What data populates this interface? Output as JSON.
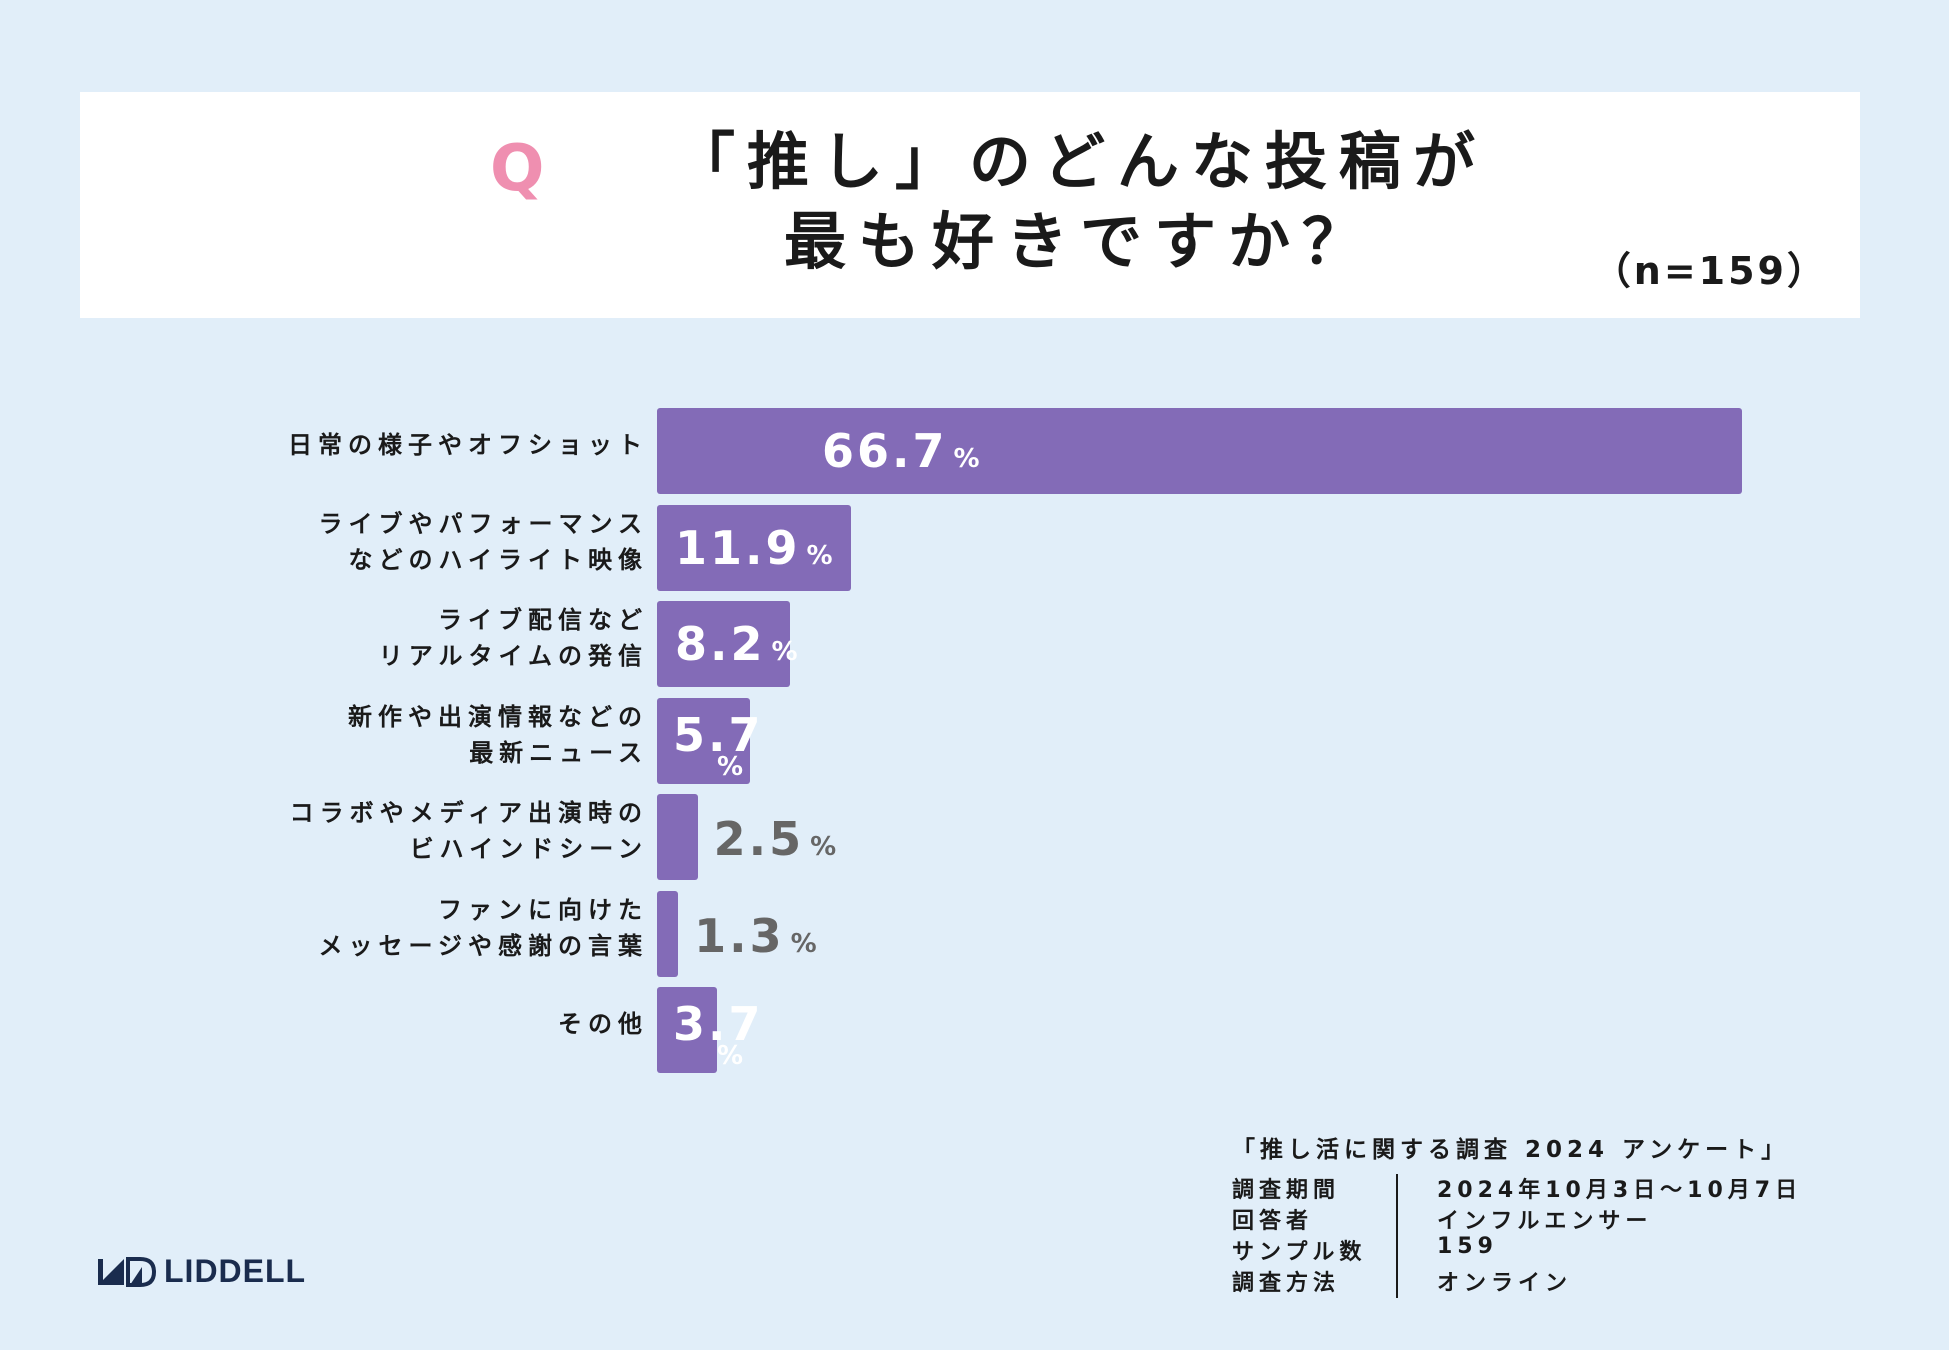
{
  "header": {
    "q_mark": "Q",
    "title_line1": "「推し」のどんな投稿が",
    "title_line2": "最も好きですか？",
    "sample": "（n=159）"
  },
  "chart_data": {
    "type": "bar",
    "orientation": "horizontal",
    "categories": [
      "日常の様子やオフショット",
      "ライブやパフォーマンスなどのハイライト映像",
      "ライブ配信などリアルタイムの発信",
      "新作や出演情報などの最新ニュース",
      "コラボやメディア出演時のビハインドシーン",
      "ファンに向けたメッセージや感謝の言葉",
      "その他"
    ],
    "category_lines": [
      [
        "日常の様子やオフショット"
      ],
      [
        "ライブやパフォーマンス",
        "などのハイライト映像"
      ],
      [
        "ライブ配信など",
        "リアルタイムの発信"
      ],
      [
        "新作や出演情報などの",
        "最新ニュース"
      ],
      [
        "コラボやメディア出演時の",
        "ビハインドシーン"
      ],
      [
        "ファンに向けた",
        "メッセージや感謝の言葉"
      ],
      [
        "その他"
      ]
    ],
    "values": [
      66.7,
      11.9,
      8.2,
      5.7,
      2.5,
      1.3,
      3.7
    ],
    "value_labels": [
      "66.7",
      "11.9",
      "8.2",
      "5.7",
      "2.5",
      "1.3",
      "3.7"
    ],
    "unit": "%",
    "xlim": [
      0,
      66.7
    ],
    "bar_color": "#836bb7",
    "grid": false,
    "legend": "none"
  },
  "survey": {
    "title": "「推し活に関する調査 2024 アンケート」",
    "rows": [
      {
        "key": "調査期間",
        "value": "2024年10月3日〜10月7日"
      },
      {
        "key": "回答者",
        "value": "インフルエンサー"
      },
      {
        "key": "サンプル数",
        "value": "159"
      },
      {
        "key": "調査方法",
        "value": "オンライン"
      }
    ]
  },
  "logo": {
    "text": "LIDDELL"
  },
  "colors": {
    "background": "#e1eef9",
    "accent_q": "#ef8fb0",
    "bar": "#836bb7",
    "logo": "#1a2c4e"
  }
}
